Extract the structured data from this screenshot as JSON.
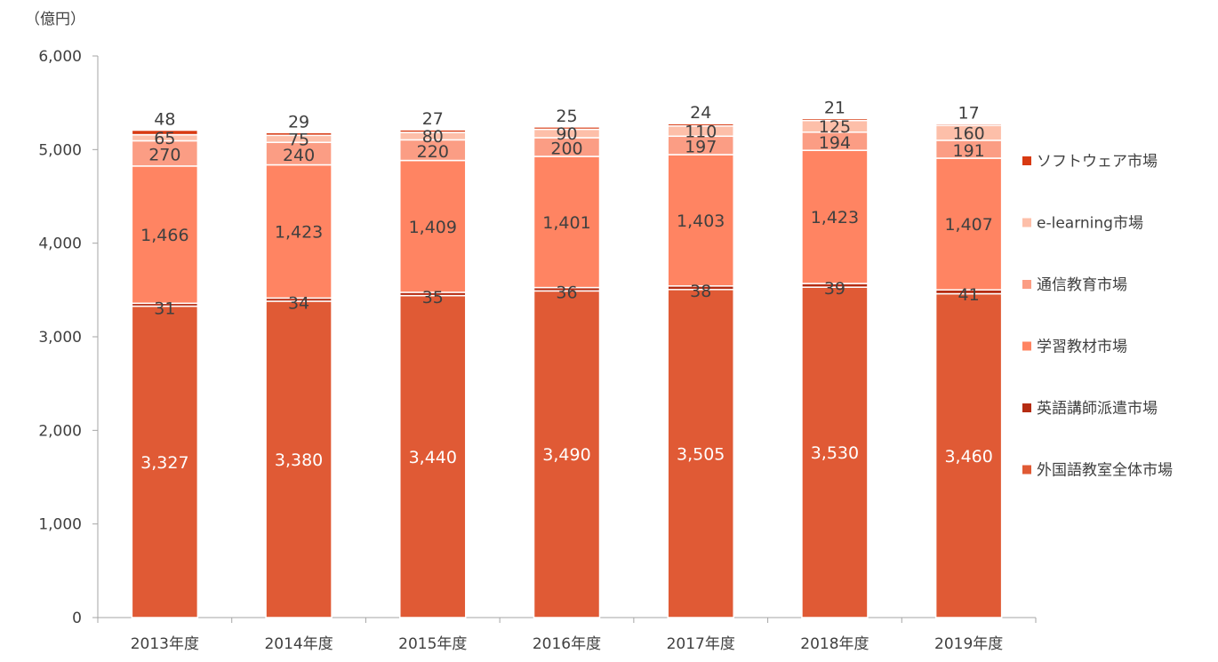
{
  "chart_data": {
    "type": "bar",
    "stacked": true,
    "unit_label": "（億円）",
    "title": "",
    "xlabel": "",
    "ylabel": "",
    "ylim": [
      0,
      6000
    ],
    "yticks": [
      "0",
      "1,000",
      "2,000",
      "3,000",
      "4,000",
      "5,000",
      "6,000"
    ],
    "grid": false,
    "legend_position": "right",
    "categories": [
      "2013年度",
      "2014年度",
      "2015年度",
      "2016年度",
      "2017年度",
      "2018年度",
      "2019年度"
    ],
    "series": [
      {
        "name": "外国語教室全体市場",
        "color": "#e05a35",
        "values": [
          3327,
          3380,
          3440,
          3490,
          3505,
          3530,
          3460
        ],
        "labels": [
          "3,327",
          "3,380",
          "3,440",
          "3,490",
          "3,505",
          "3,530",
          "3,460"
        ]
      },
      {
        "name": "英語講師派遣市場",
        "color": "#b52c12",
        "values": [
          31,
          34,
          35,
          36,
          38,
          39,
          41
        ],
        "labels": [
          "31",
          "34",
          "35",
          "36",
          "38",
          "39",
          "41"
        ]
      },
      {
        "name": "学習教材市場",
        "color": "#ff8462",
        "values": [
          1466,
          1423,
          1409,
          1401,
          1403,
          1423,
          1407
        ],
        "labels": [
          "1,466",
          "1,423",
          "1,409",
          "1,401",
          "1,403",
          "1,423",
          "1,407"
        ]
      },
      {
        "name": "通信教育市場",
        "color": "#fb9d84",
        "values": [
          270,
          240,
          220,
          200,
          197,
          194,
          191
        ],
        "labels": [
          "270",
          "240",
          "220",
          "200",
          "197",
          "194",
          "191"
        ]
      },
      {
        "name": "e-learning市場",
        "color": "#fdbfa9",
        "values": [
          65,
          75,
          80,
          90,
          110,
          125,
          160
        ],
        "labels": [
          "65",
          "75",
          "80",
          "90",
          "110",
          "125",
          "160"
        ]
      },
      {
        "name": "ソフトウェア市場",
        "color": "#d83a12",
        "values": [
          48,
          29,
          27,
          25,
          24,
          21,
          17
        ],
        "labels": [
          "48",
          "29",
          "27",
          "25",
          "24",
          "21",
          "17"
        ]
      }
    ],
    "legend_order": [
      "ソフトウェア市場",
      "e-learning市場",
      "通信教育市場",
      "学習教材市場",
      "英語講師派遣市場",
      "外国語教室全体市場"
    ]
  }
}
